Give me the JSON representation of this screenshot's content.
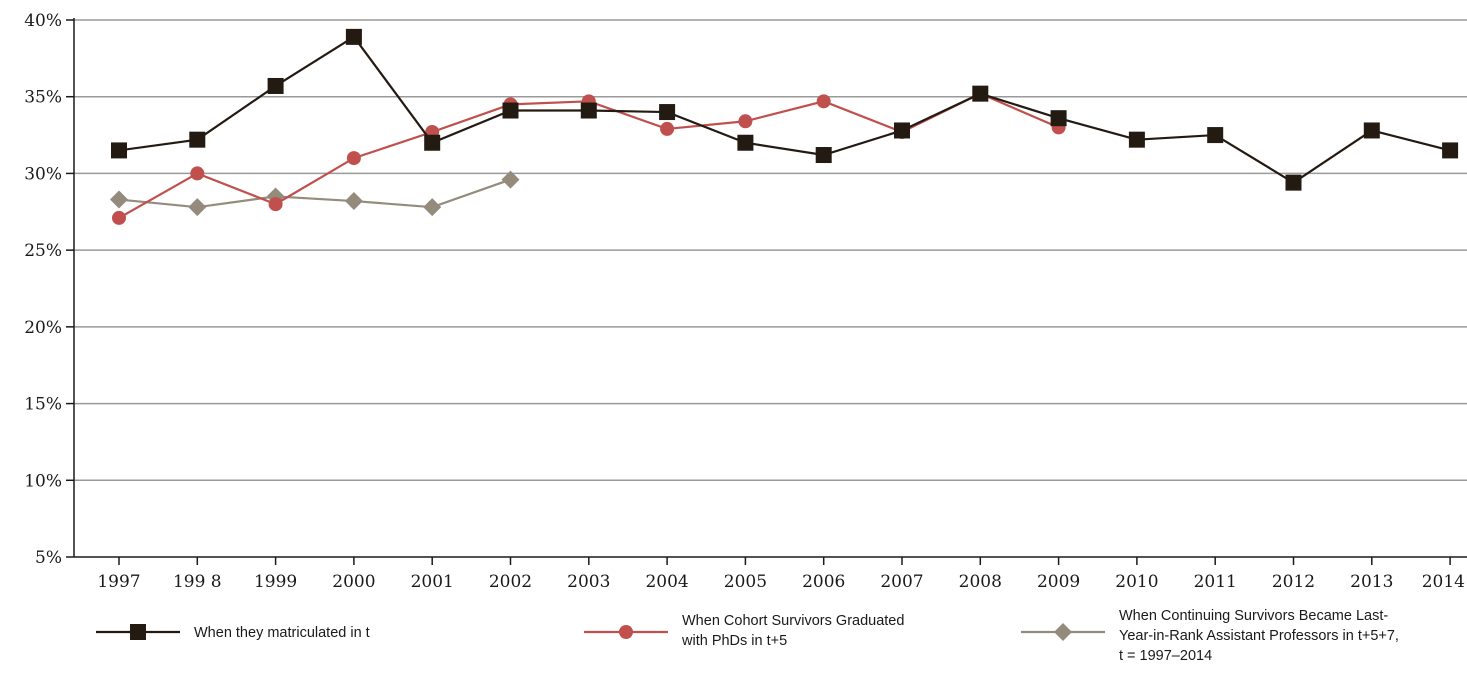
{
  "chart_data": {
    "type": "line",
    "categories": [
      "1997",
      "199 8",
      "1999",
      "2000",
      "2001",
      "2002",
      "2003",
      "2004",
      "2005",
      "2006",
      "2007",
      "2008",
      "2009",
      "2010",
      "2011",
      "2012",
      "2013",
      "2014"
    ],
    "y_ticks": [
      "5%",
      "10%",
      "15%",
      "20%",
      "25%",
      "30%",
      "35%",
      "40%"
    ],
    "ylim": [
      5,
      40
    ],
    "y_unit": "%",
    "grid": true,
    "legend_position": "bottom",
    "series": [
      {
        "name_lines": [
          "When they matriculated in t"
        ],
        "color": "#231a12",
        "marker": "square",
        "values": [
          31.5,
          32.2,
          35.7,
          38.9,
          32.0,
          34.1,
          34.1,
          34.0,
          32.0,
          31.2,
          32.8,
          35.2,
          33.6,
          32.2,
          32.5,
          29.4,
          32.8,
          31.5
        ]
      },
      {
        "name_lines": [
          "When Cohort Survivors Graduated",
          "with PhDs in t+5"
        ],
        "color": "#c0504d",
        "marker": "circle",
        "values": [
          27.1,
          30.0,
          28.0,
          31.0,
          32.7,
          34.5,
          34.7,
          32.9,
          33.4,
          34.7,
          32.7,
          35.2,
          33.0,
          null,
          null,
          null,
          null,
          null
        ]
      },
      {
        "name_lines": [
          "When Continuing Survivors Became Last-",
          "Year-in-Rank Assistant Professors in t+5+7,",
          "t = 1997–2014"
        ],
        "color": "#948b7c",
        "marker": "diamond",
        "values": [
          28.3,
          27.8,
          28.5,
          28.2,
          27.8,
          29.6,
          null,
          null,
          null,
          null,
          null,
          null,
          null,
          null,
          null,
          null,
          null,
          null
        ]
      }
    ]
  }
}
